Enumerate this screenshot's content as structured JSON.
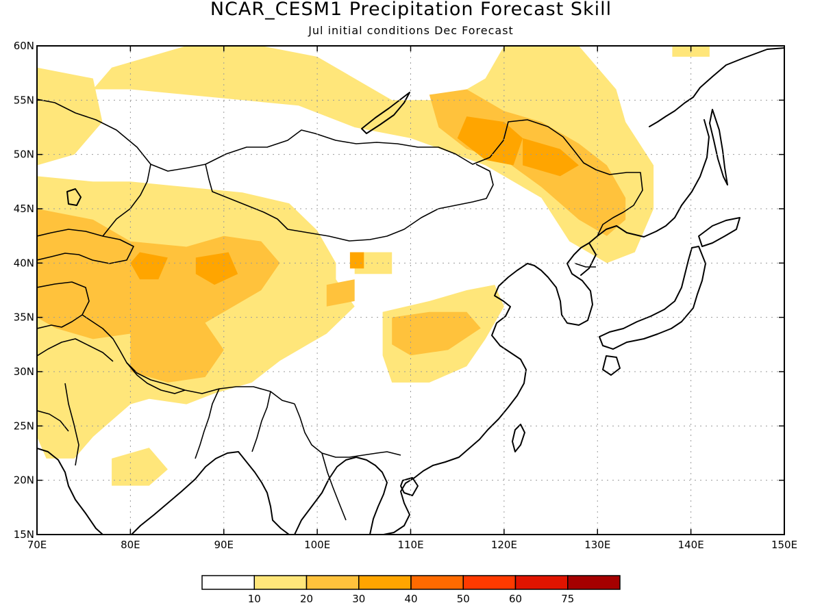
{
  "title": "NCAR_CESM1 Precipitation Forecast Skill",
  "subtitle": "Jul initial conditions  Dec Forecast",
  "map": {
    "lon_range": [
      70,
      150
    ],
    "lat_range": [
      15,
      60
    ],
    "x_ticks": [
      {
        "value": 70,
        "label": "70E"
      },
      {
        "value": 80,
        "label": "80E"
      },
      {
        "value": 90,
        "label": "90E"
      },
      {
        "value": 100,
        "label": "100E"
      },
      {
        "value": 110,
        "label": "110E"
      },
      {
        "value": 120,
        "label": "120E"
      },
      {
        "value": 130,
        "label": "130E"
      },
      {
        "value": 140,
        "label": "140E"
      },
      {
        "value": 150,
        "label": "150E"
      }
    ],
    "y_ticks": [
      {
        "value": 15,
        "label": "15N"
      },
      {
        "value": 20,
        "label": "20N"
      },
      {
        "value": 25,
        "label": "25N"
      },
      {
        "value": 30,
        "label": "30N"
      },
      {
        "value": 35,
        "label": "35N"
      },
      {
        "value": 40,
        "label": "40N"
      },
      {
        "value": 45,
        "label": "45N"
      },
      {
        "value": 50,
        "label": "50N"
      },
      {
        "value": 55,
        "label": "55N"
      },
      {
        "value": 60,
        "label": "60N"
      }
    ],
    "grid": true
  },
  "colorbar": {
    "colors": [
      "#ffffff",
      "#ffe67a",
      "#ffc23c",
      "#ffa500",
      "#ff6a00",
      "#ff3a00",
      "#e01400",
      "#a50000"
    ],
    "labels": [
      "10",
      "20",
      "30",
      "40",
      "50",
      "60",
      "75"
    ]
  },
  "skill_regions": [
    {
      "level": 1,
      "lonlat": [
        [
          78,
          58
        ],
        [
          86,
          60
        ],
        [
          94,
          60
        ],
        [
          100,
          59
        ],
        [
          104,
          57
        ],
        [
          108,
          55
        ],
        [
          114,
          55
        ],
        [
          118,
          57
        ],
        [
          120,
          60
        ],
        [
          128,
          60
        ],
        [
          132,
          56
        ],
        [
          133,
          53
        ],
        [
          136,
          49
        ],
        [
          136,
          45
        ],
        [
          134,
          41
        ],
        [
          131,
          40
        ],
        [
          127,
          42
        ],
        [
          124,
          46
        ],
        [
          118,
          49
        ],
        [
          110,
          51.5
        ],
        [
          104,
          52.5
        ],
        [
          98,
          54.5
        ],
        [
          92,
          55
        ],
        [
          86,
          55.5
        ],
        [
          80,
          56
        ],
        [
          76,
          56
        ]
      ]
    },
    {
      "level": 1,
      "lonlat": [
        [
          70,
          58
        ],
        [
          76,
          57
        ],
        [
          77,
          53
        ],
        [
          74,
          50
        ],
        [
          70,
          49
        ]
      ]
    },
    {
      "level": 1,
      "lonlat": [
        [
          70,
          48
        ],
        [
          76,
          47.5
        ],
        [
          80,
          47.5
        ],
        [
          86,
          47
        ],
        [
          92,
          46.5
        ],
        [
          97,
          45.5
        ],
        [
          100,
          43
        ],
        [
          102,
          40
        ],
        [
          102,
          38.5
        ],
        [
          104,
          36
        ],
        [
          101,
          33.5
        ],
        [
          99,
          32.5
        ],
        [
          96,
          31
        ],
        [
          93,
          29
        ],
        [
          89,
          28
        ],
        [
          86,
          27
        ],
        [
          82,
          27.5
        ],
        [
          80,
          27
        ],
        [
          78,
          25.5
        ],
        [
          76,
          24
        ],
        [
          74,
          22
        ],
        [
          71,
          22
        ],
        [
          70,
          24
        ]
      ]
    },
    {
      "level": 1,
      "lonlat": [
        [
          104,
          41
        ],
        [
          108,
          41
        ],
        [
          108,
          39
        ],
        [
          104,
          39
        ]
      ]
    },
    {
      "level": 1,
      "lonlat": [
        [
          107,
          35.5
        ],
        [
          112,
          36.5
        ],
        [
          116,
          37.5
        ],
        [
          119,
          38
        ],
        [
          120,
          36
        ],
        [
          118,
          33
        ],
        [
          116,
          30.5
        ],
        [
          112,
          29
        ],
        [
          108,
          29
        ],
        [
          107,
          31.5
        ]
      ]
    },
    {
      "level": 1,
      "lonlat": [
        [
          78,
          22
        ],
        [
          82,
          23
        ],
        [
          84,
          21
        ],
        [
          82,
          19.5
        ],
        [
          78,
          19.5
        ]
      ]
    },
    {
      "level": 1,
      "lonlat": [
        [
          138,
          60
        ],
        [
          142,
          60
        ],
        [
          142,
          59
        ],
        [
          138,
          59
        ]
      ]
    },
    {
      "level": 2,
      "lonlat": [
        [
          112,
          55.5
        ],
        [
          116,
          56
        ],
        [
          120,
          54
        ],
        [
          124,
          53
        ],
        [
          128,
          51
        ],
        [
          131,
          49
        ],
        [
          133,
          46
        ],
        [
          133,
          44
        ],
        [
          131,
          42.5
        ],
        [
          128,
          44
        ],
        [
          124,
          47
        ],
        [
          120,
          49.5
        ],
        [
          116,
          50.5
        ],
        [
          113,
          52.5
        ]
      ]
    },
    {
      "level": 2,
      "lonlat": [
        [
          70,
          45
        ],
        [
          76,
          44
        ],
        [
          80,
          42
        ],
        [
          86,
          41.5
        ],
        [
          90,
          42.5
        ],
        [
          94,
          42
        ],
        [
          96,
          40
        ],
        [
          94,
          37.5
        ],
        [
          90,
          35.5
        ],
        [
          88,
          34.5
        ],
        [
          84,
          35
        ],
        [
          80,
          33.5
        ],
        [
          76,
          33
        ],
        [
          72,
          34
        ],
        [
          70,
          35
        ]
      ]
    },
    {
      "level": 2,
      "lonlat": [
        [
          80,
          34
        ],
        [
          84,
          35.5
        ],
        [
          88,
          34.5
        ],
        [
          90,
          32
        ],
        [
          88,
          29.5
        ],
        [
          84,
          29
        ],
        [
          80,
          30
        ]
      ]
    },
    {
      "level": 2,
      "lonlat": [
        [
          101,
          38
        ],
        [
          104,
          38.5
        ],
        [
          104,
          36.5
        ],
        [
          101,
          36
        ]
      ]
    },
    {
      "level": 2,
      "lonlat": [
        [
          108,
          35
        ],
        [
          112,
          35.5
        ],
        [
          116,
          35.5
        ],
        [
          117.5,
          34
        ],
        [
          114,
          32
        ],
        [
          110,
          31.5
        ],
        [
          108,
          32.5
        ]
      ]
    },
    {
      "level": 3,
      "lonlat": [
        [
          116,
          53.5
        ],
        [
          120,
          53
        ],
        [
          122,
          51.5
        ],
        [
          121,
          49
        ],
        [
          118,
          49.5
        ],
        [
          115,
          51.5
        ]
      ]
    },
    {
      "level": 3,
      "lonlat": [
        [
          122,
          51.5
        ],
        [
          126,
          50.5
        ],
        [
          128,
          49
        ],
        [
          126,
          48
        ],
        [
          122,
          49
        ]
      ]
    },
    {
      "level": 3,
      "lonlat": [
        [
          81,
          41
        ],
        [
          84,
          40.5
        ],
        [
          83,
          38.5
        ],
        [
          81,
          38.5
        ],
        [
          80,
          40
        ]
      ]
    },
    {
      "level": 3,
      "lonlat": [
        [
          87,
          40.5
        ],
        [
          90.5,
          41
        ],
        [
          91.5,
          39
        ],
        [
          89,
          38
        ],
        [
          87,
          39
        ]
      ]
    },
    {
      "level": 3,
      "lonlat": [
        [
          103.5,
          41
        ],
        [
          105,
          41
        ],
        [
          105,
          39.5
        ],
        [
          103.5,
          39.5
        ]
      ]
    }
  ]
}
